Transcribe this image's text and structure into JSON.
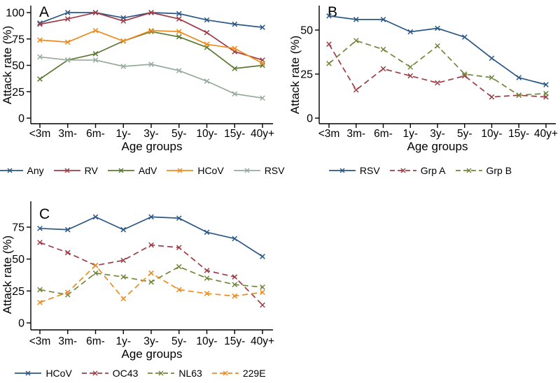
{
  "figure_title": "",
  "axis": {
    "xlabel": "Age groups",
    "ylabel": "Attack rate (%)",
    "categories": [
      "<3m",
      "3m-",
      "6m-",
      "1y-",
      "3y-",
      "5y-",
      "10y-",
      "15y-",
      "40y+"
    ]
  },
  "colors": {
    "navy": "#2b5786",
    "maroon": "#9e3c46",
    "forest": "#5b7933",
    "olive": "#71863b",
    "orange": "#ee8b1f",
    "sage": "#97ab9d",
    "axis_black": "#000000"
  },
  "chart_data": [
    {
      "type": "line",
      "panel_label": "A",
      "title": "",
      "xlabel": "Age groups",
      "ylabel": "Attack rate (%)",
      "categories": [
        "<3m",
        "3m-",
        "6m-",
        "1y-",
        "3y-",
        "5y-",
        "10y-",
        "15y-",
        "40y+"
      ],
      "yticks": [
        0,
        25,
        50,
        75,
        100
      ],
      "ylim": [
        0,
        108
      ],
      "grid": false,
      "marker": "x",
      "legend_position": "bottom",
      "series": [
        {
          "name": "Any",
          "color": "#2b5786",
          "line_style": "solid",
          "values": [
            90,
            100,
            100,
            95,
            100,
            99,
            93,
            89,
            86
          ]
        },
        {
          "name": "RV",
          "color": "#9e3c46",
          "line_style": "solid",
          "values": [
            89,
            94,
            100,
            92,
            100,
            94,
            81,
            63,
            55
          ]
        },
        {
          "name": "AdV",
          "color": "#5b7933",
          "line_style": "solid",
          "values": [
            37,
            55,
            61,
            73,
            82,
            77,
            67,
            47,
            50
          ]
        },
        {
          "name": "HCoV",
          "color": "#ee8b1f",
          "line_style": "solid",
          "values": [
            74,
            72,
            83,
            73,
            83,
            82,
            70,
            66,
            52
          ]
        },
        {
          "name": "RSV",
          "color": "#97ab9d",
          "line_style": "solid",
          "values": [
            58,
            55,
            55,
            49,
            51,
            45,
            35,
            23,
            19
          ]
        }
      ]
    },
    {
      "type": "line",
      "panel_label": "B",
      "title": "",
      "xlabel": "Age groups",
      "ylabel": "Attack rate (%)",
      "categories": [
        "<3m",
        "3m-",
        "6m-",
        "1y-",
        "3y-",
        "5y-",
        "10y-",
        "15y-",
        "40y+"
      ],
      "yticks": [
        0,
        25,
        50
      ],
      "ylim": [
        0,
        64
      ],
      "grid": false,
      "marker": "x",
      "legend_position": "bottom",
      "series": [
        {
          "name": "RSV",
          "color": "#2b5786",
          "line_style": "solid",
          "values": [
            58,
            56,
            56,
            49,
            51,
            46,
            34,
            23,
            19
          ]
        },
        {
          "name": "Grp A",
          "color": "#9e3c46",
          "line_style": "dashed",
          "values": [
            42,
            16,
            28,
            24,
            20,
            24,
            12,
            13,
            12
          ]
        },
        {
          "name": "Grp B",
          "color": "#71863b",
          "line_style": "dashed",
          "values": [
            31,
            44,
            39,
            29,
            41,
            25,
            23,
            13,
            14
          ]
        }
      ]
    },
    {
      "type": "line",
      "panel_label": "C",
      "title": "",
      "xlabel": "Age groups",
      "ylabel": "Attack rate (%)",
      "categories": [
        "<3m",
        "3m-",
        "6m-",
        "1y-",
        "3y-",
        "5y-",
        "10y-",
        "15y-",
        "40y+"
      ],
      "yticks": [
        0,
        25,
        50,
        75
      ],
      "ylim": [
        0,
        95
      ],
      "grid": false,
      "marker": "x",
      "legend_position": "bottom",
      "series": [
        {
          "name": "HCoV",
          "color": "#2b5786",
          "line_style": "solid",
          "values": [
            74,
            73,
            83,
            73,
            83,
            82,
            71,
            66,
            52
          ]
        },
        {
          "name": "OC43",
          "color": "#9e3c46",
          "line_style": "dashed",
          "values": [
            63,
            55,
            45,
            49,
            61,
            59,
            41,
            36,
            14
          ]
        },
        {
          "name": "NL63",
          "color": "#71863b",
          "line_style": "dashed",
          "values": [
            26,
            22,
            39,
            36,
            32,
            44,
            35,
            30,
            28
          ]
        },
        {
          "name": "229E",
          "color": "#ee8b1f",
          "line_style": "dashed",
          "values": [
            16,
            24,
            45,
            19,
            39,
            26,
            23,
            21,
            24
          ]
        }
      ]
    }
  ]
}
